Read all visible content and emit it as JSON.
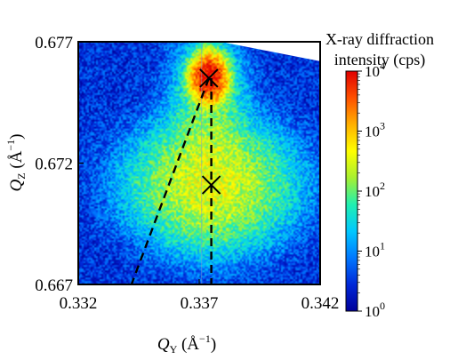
{
  "chart_data": {
    "type": "heatmap",
    "title": "",
    "xlabel": {
      "symbol": "Q",
      "sub": "Y",
      "unit": " (Å",
      "exp": "−1",
      "close": ")"
    },
    "ylabel": {
      "symbol": "Q",
      "sub": "Z",
      "unit": " (Å",
      "exp": "−1",
      "close": ")"
    },
    "xlim": [
      0.332,
      0.342
    ],
    "ylim": [
      0.667,
      0.677
    ],
    "x_ticks": [
      {
        "value": 0.332,
        "label": "0.332"
      },
      {
        "value": 0.337,
        "label": "0.337"
      },
      {
        "value": 0.342,
        "label": "0.342"
      }
    ],
    "y_ticks": [
      {
        "value": 0.667,
        "label": "0.667"
      },
      {
        "value": 0.672,
        "label": "0.672"
      },
      {
        "value": 0.677,
        "label": "0.677"
      }
    ],
    "color_scale": "log",
    "colorbar": {
      "title": [
        "X-ray diffraction",
        "intensity (cps)"
      ],
      "min": 1,
      "max": 10000,
      "ticks": [
        {
          "value": 10000,
          "base": "10",
          "exp": "4"
        },
        {
          "value": 1000,
          "base": "10",
          "exp": "3"
        },
        {
          "value": 100,
          "base": "10",
          "exp": "2"
        },
        {
          "value": 10,
          "base": "10",
          "exp": "1"
        },
        {
          "value": 1,
          "base": "10",
          "exp": "0"
        }
      ],
      "colormap": [
        "#00009a",
        "#0028d8",
        "#0078ff",
        "#00c8ff",
        "#20f0b0",
        "#a8f030",
        "#ffff00",
        "#ffb000",
        "#ff5000",
        "#e00000"
      ]
    },
    "peaks": [
      {
        "name": "upper-peak",
        "x": 0.3374,
        "y": 0.6755,
        "intensity": 10000
      },
      {
        "name": "lower-peak",
        "x": 0.3375,
        "y": 0.6711,
        "intensity": 300
      }
    ],
    "background_intensity": 3,
    "unmeasured_region": [
      [
        0.3379,
        0.677
      ],
      [
        0.342,
        0.677
      ],
      [
        0.342,
        0.6762
      ]
    ],
    "dashed_lines": [
      {
        "name": "vertical-guide",
        "points": [
          [
            0.3375,
            0.6755
          ],
          [
            0.3375,
            0.667
          ]
        ]
      },
      {
        "name": "diagonal-guide",
        "points": [
          [
            0.3374,
            0.6755
          ],
          [
            0.3342,
            0.667
          ]
        ]
      }
    ],
    "crosses": [
      {
        "name": "upper-cross",
        "x": 0.3374,
        "y": 0.6755
      },
      {
        "name": "lower-cross",
        "x": 0.3375,
        "y": 0.6711
      }
    ],
    "faint_vertical_line_x": 0.3371
  }
}
